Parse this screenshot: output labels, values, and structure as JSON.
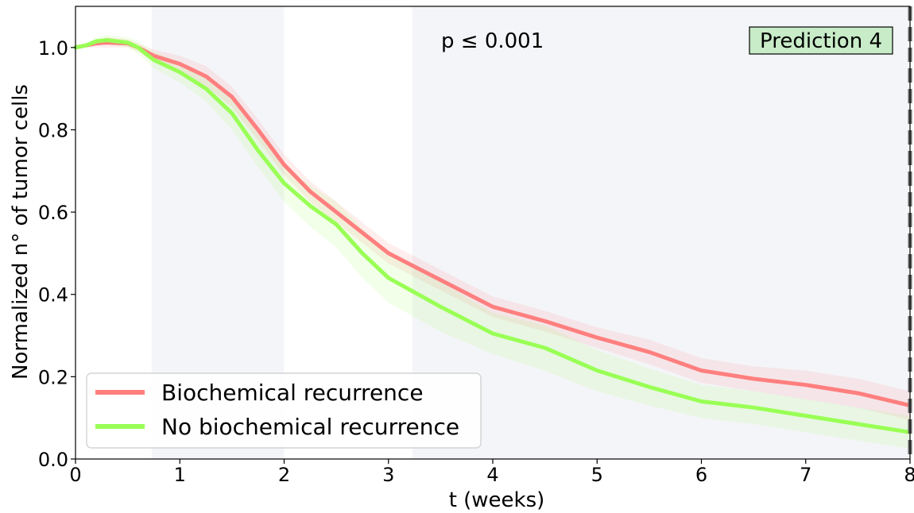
{
  "chart_data": {
    "type": "line",
    "xlabel": "t (weeks)",
    "ylabel": "Normalized n° of tumor cells",
    "xlim": [
      0,
      8
    ],
    "ylim": [
      0,
      1.1
    ],
    "xticks": [
      "0",
      "1",
      "2",
      "3",
      "4",
      "5",
      "6",
      "7",
      "8"
    ],
    "yticks": [
      "0.0",
      "0.2",
      "0.4",
      "0.6",
      "0.8",
      "1.0"
    ],
    "grid": false,
    "legend_position": "lower-left",
    "annotations": {
      "pvalue": "p  ≤  0.001",
      "prediction": "Prediction 4"
    },
    "shaded_regions": [
      [
        0.73,
        2.0
      ],
      [
        3.23,
        8.0
      ]
    ],
    "vertical_line": {
      "x": 8.0,
      "style": "dashed",
      "color": "#666666"
    },
    "series": [
      {
        "name": "Biochemical recurrence",
        "color": "#ff7f7f",
        "x": [
          0,
          0.1,
          0.2,
          0.3,
          0.5,
          0.6,
          0.75,
          1.0,
          1.25,
          1.5,
          1.75,
          2.0,
          2.25,
          2.5,
          2.75,
          3.0,
          3.5,
          4.0,
          4.5,
          5.0,
          5.5,
          6.0,
          6.5,
          7.0,
          7.5,
          8.0
        ],
        "y": [
          1.0,
          1.005,
          1.01,
          1.012,
          1.01,
          1.0,
          0.98,
          0.96,
          0.93,
          0.88,
          0.8,
          0.715,
          0.65,
          0.6,
          0.55,
          0.5,
          0.435,
          0.37,
          0.335,
          0.295,
          0.26,
          0.215,
          0.195,
          0.18,
          0.16,
          0.13
        ],
        "lower": [
          1.0,
          1.0,
          1.0,
          1.0,
          1.0,
          0.99,
          0.965,
          0.94,
          0.905,
          0.855,
          0.775,
          0.69,
          0.625,
          0.575,
          0.525,
          0.475,
          0.41,
          0.345,
          0.31,
          0.27,
          0.23,
          0.185,
          0.165,
          0.145,
          0.125,
          0.095
        ],
        "upper": [
          1.0,
          1.01,
          1.02,
          1.025,
          1.02,
          1.01,
          0.995,
          0.98,
          0.955,
          0.905,
          0.825,
          0.74,
          0.675,
          0.625,
          0.575,
          0.525,
          0.46,
          0.395,
          0.36,
          0.32,
          0.29,
          0.245,
          0.225,
          0.215,
          0.195,
          0.165
        ]
      },
      {
        "name": "No biochemical recurrence",
        "color": "#99ff55",
        "x": [
          0,
          0.1,
          0.2,
          0.3,
          0.5,
          0.6,
          0.75,
          1.0,
          1.25,
          1.5,
          1.75,
          2.0,
          2.25,
          2.5,
          2.75,
          3.0,
          3.5,
          4.0,
          4.5,
          5.0,
          5.5,
          6.0,
          6.5,
          7.0,
          7.5,
          8.0
        ],
        "y": [
          1.0,
          1.005,
          1.015,
          1.018,
          1.012,
          1.0,
          0.97,
          0.94,
          0.9,
          0.84,
          0.75,
          0.67,
          0.615,
          0.57,
          0.5,
          0.44,
          0.37,
          0.305,
          0.27,
          0.215,
          0.175,
          0.14,
          0.125,
          0.105,
          0.085,
          0.065
        ],
        "lower": [
          1.0,
          1.0,
          1.005,
          1.008,
          1.0,
          0.985,
          0.95,
          0.915,
          0.87,
          0.8,
          0.71,
          0.625,
          0.565,
          0.515,
          0.44,
          0.38,
          0.31,
          0.255,
          0.215,
          0.165,
          0.13,
          0.1,
          0.085,
          0.065,
          0.045,
          0.025
        ],
        "upper": [
          1.0,
          1.01,
          1.025,
          1.03,
          1.025,
          1.015,
          0.99,
          0.965,
          0.93,
          0.88,
          0.79,
          0.715,
          0.665,
          0.625,
          0.56,
          0.5,
          0.43,
          0.355,
          0.325,
          0.265,
          0.22,
          0.18,
          0.165,
          0.145,
          0.125,
          0.105
        ]
      }
    ]
  }
}
